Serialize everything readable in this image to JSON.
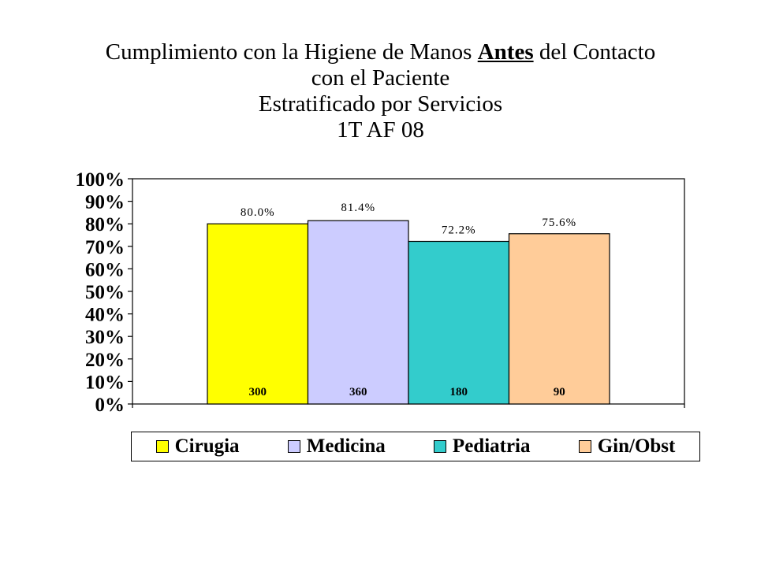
{
  "title": {
    "line1_pre": "Cumplimiento con la Higiene de Manos ",
    "line1_emph": "Antes",
    "line1_post": " del Contacto",
    "line2": "con el Paciente",
    "line3": "Estratificado por Servicios",
    "line4": "1T AF 08"
  },
  "chart_data": {
    "type": "bar",
    "categories": [
      "Cirugia",
      "Medicina",
      "Pediatria",
      "Gin/Obst"
    ],
    "series": [
      {
        "name": "",
        "values": [
          80.0,
          81.4,
          72.2,
          75.6
        ],
        "value_labels": [
          "80.0%",
          "81.4%",
          "72.2%",
          "75.6%"
        ],
        "count_labels": [
          "300",
          "360",
          "180",
          "90"
        ]
      }
    ],
    "colors": [
      "#FFFF00",
      "#CCCCFF",
      "#33CCCC",
      "#FFCC99"
    ],
    "ylim": [
      0,
      100
    ],
    "yticks": [
      "0%",
      "10%",
      "20%",
      "30%",
      "40%",
      "50%",
      "60%",
      "70%",
      "80%",
      "90%",
      "100%"
    ],
    "xlabel": "",
    "ylabel": "",
    "grid": false,
    "legend": {
      "position": "bottom",
      "entries": [
        "Cirugia",
        "Medicina",
        "Pediatria",
        "Gin/Obst"
      ]
    }
  }
}
